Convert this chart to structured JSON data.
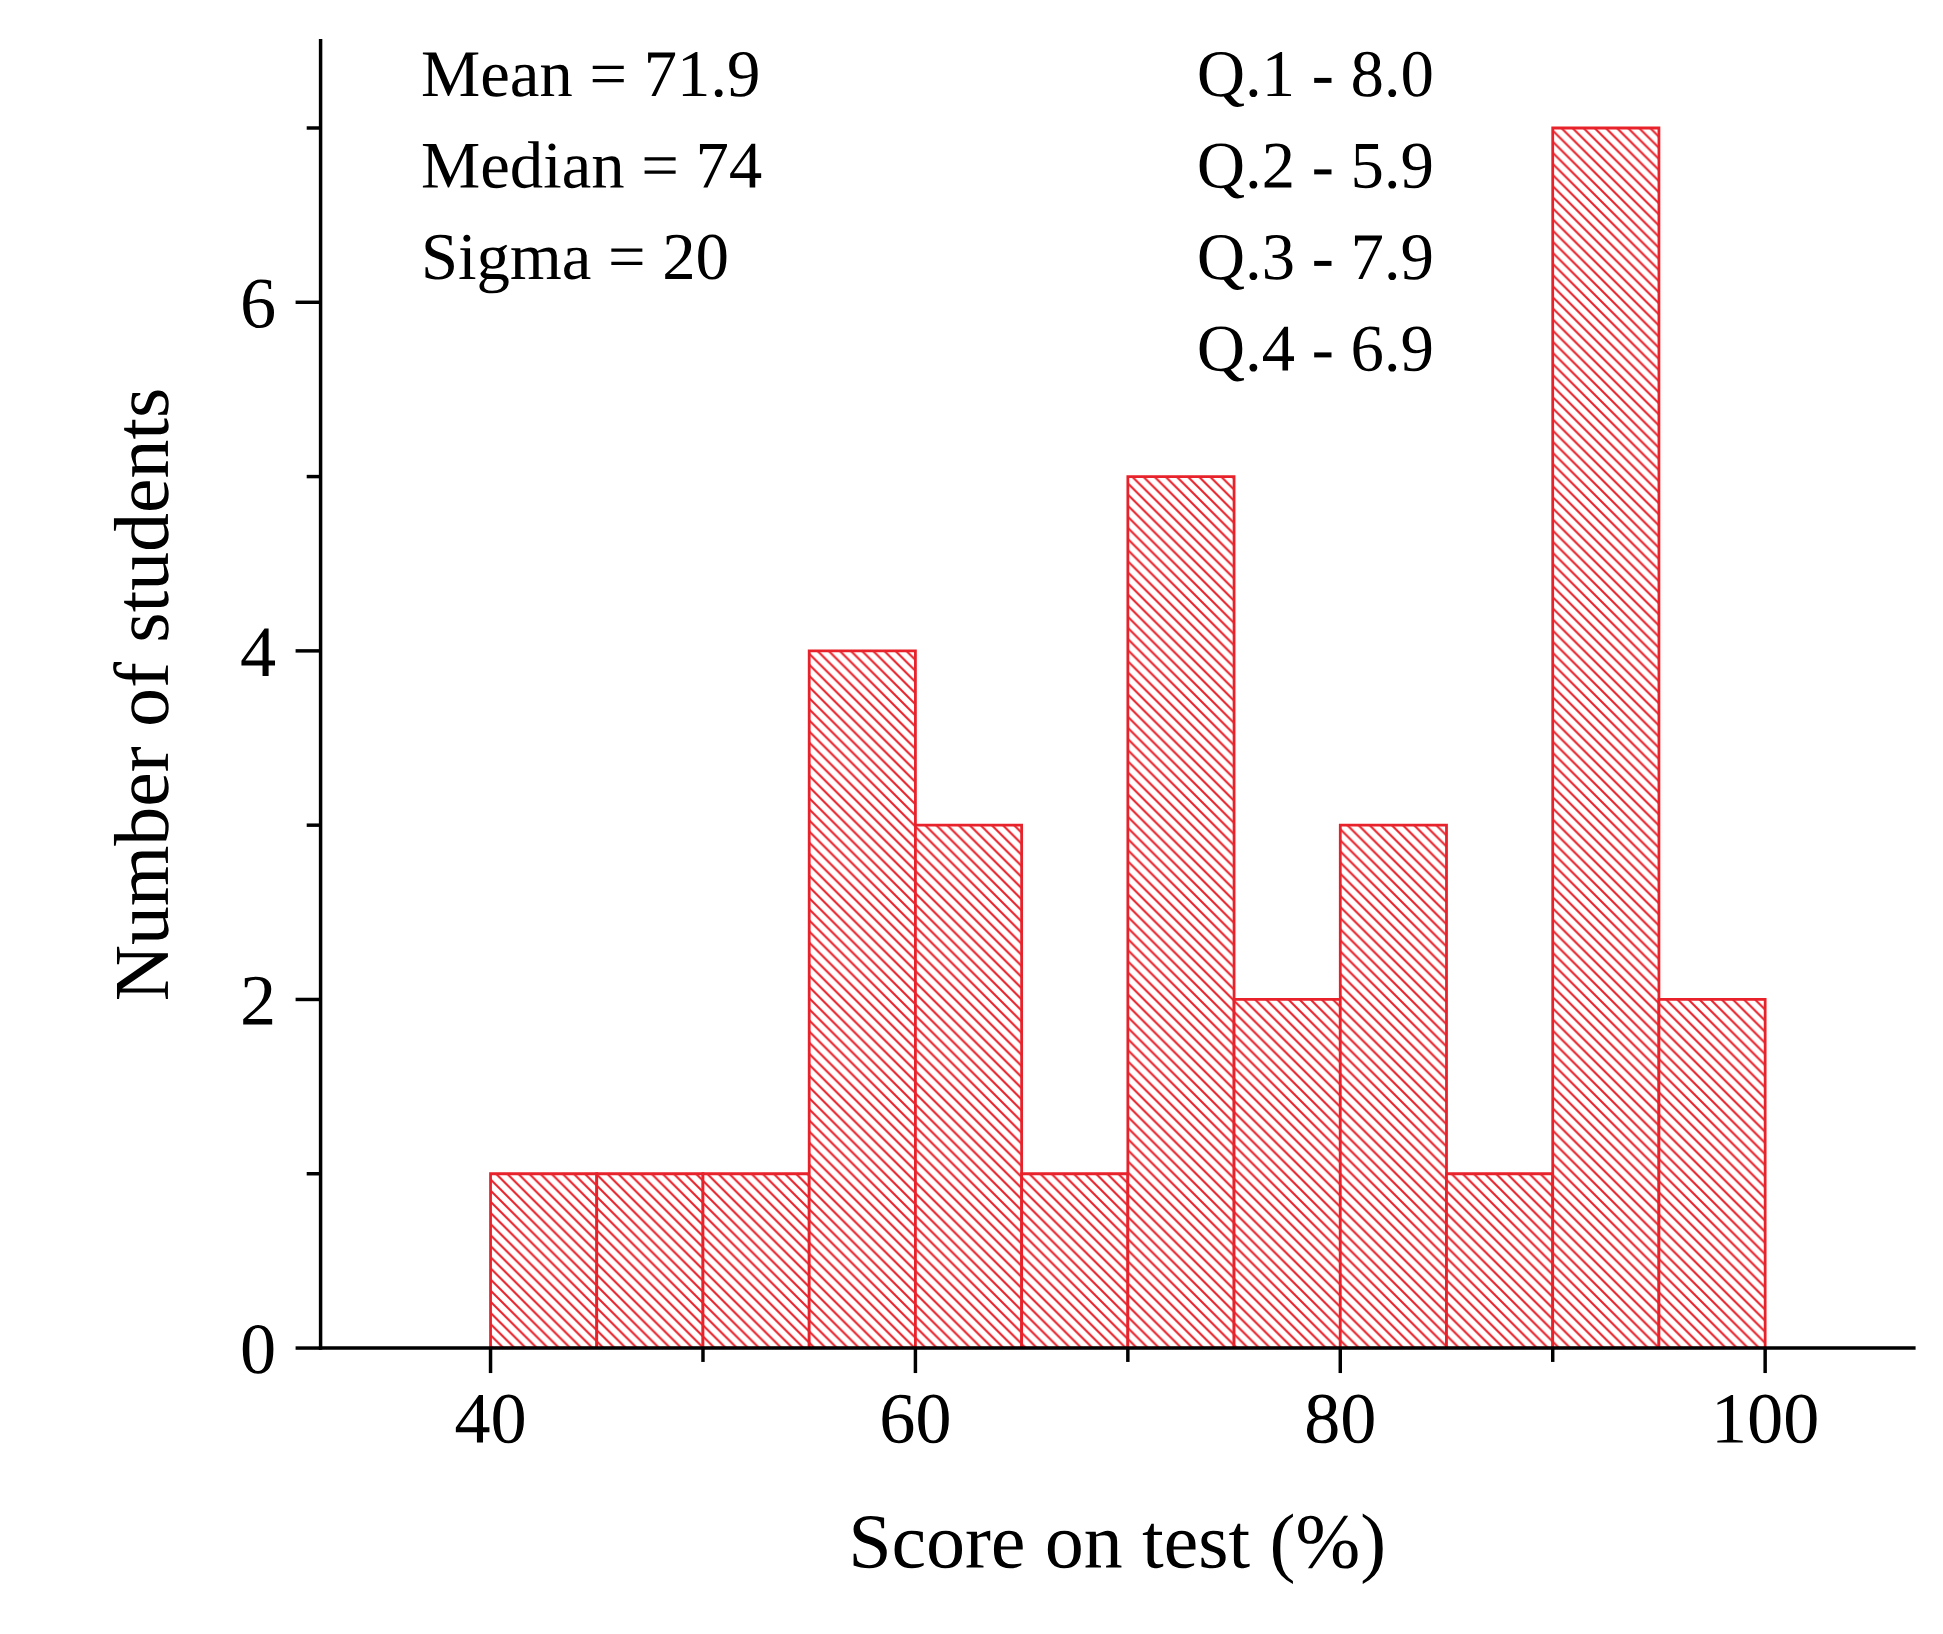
{
  "chart_data": {
    "type": "histogram",
    "xlabel": "Score on test (%)",
    "ylabel": "Number of students",
    "bins": [
      40,
      45,
      50,
      55,
      60,
      65,
      70,
      75,
      80,
      85,
      90,
      95,
      100
    ],
    "values": [
      1,
      1,
      1,
      4,
      3,
      1,
      5,
      2,
      3,
      1,
      7,
      2
    ],
    "color": "#e8222b",
    "xlim": [
      32,
      107
    ],
    "xticks": [
      40,
      60,
      80,
      100
    ],
    "ylim": [
      0,
      7.5
    ],
    "yticks": [
      0,
      2,
      4,
      6
    ],
    "annotations": [
      "Mean = 71.9",
      "Median = 74",
      "Sigma = 20",
      "Q.1 - 8.0",
      "Q.2 - 5.9",
      "Q.3 - 7.9",
      "Q.4 - 6.9"
    ],
    "grid": false
  }
}
